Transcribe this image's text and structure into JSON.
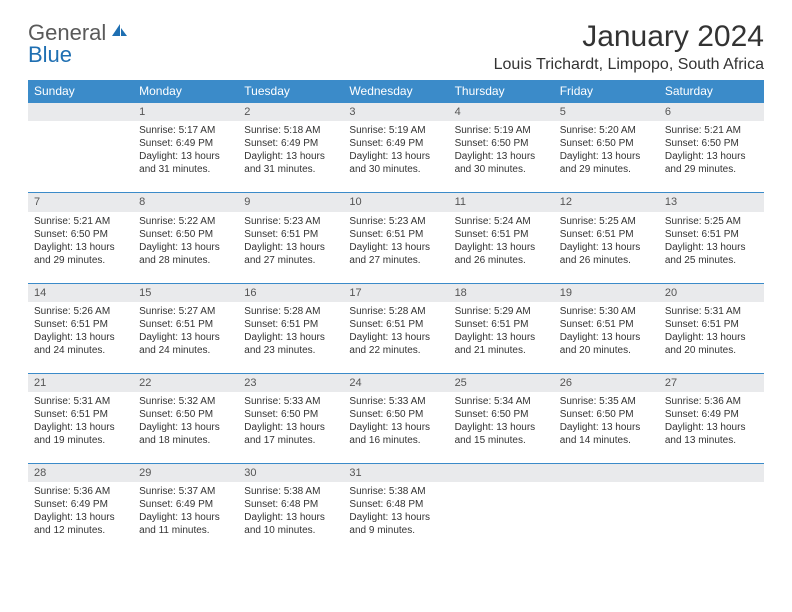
{
  "brand": {
    "part1": "General",
    "part2": "Blue"
  },
  "title": "January 2024",
  "location": "Louis Trichardt, Limpopo, South Africa",
  "colors": {
    "header_bg": "#3b8bc9",
    "daynum_bg": "#e9eaec",
    "border": "#3b8bc9"
  },
  "weekdays": [
    "Sunday",
    "Monday",
    "Tuesday",
    "Wednesday",
    "Thursday",
    "Friday",
    "Saturday"
  ],
  "weeks": [
    {
      "nums": [
        "",
        "1",
        "2",
        "3",
        "4",
        "5",
        "6"
      ],
      "cells": [
        null,
        {
          "sunrise": "Sunrise: 5:17 AM",
          "sunset": "Sunset: 6:49 PM",
          "day1": "Daylight: 13 hours",
          "day2": "and 31 minutes."
        },
        {
          "sunrise": "Sunrise: 5:18 AM",
          "sunset": "Sunset: 6:49 PM",
          "day1": "Daylight: 13 hours",
          "day2": "and 31 minutes."
        },
        {
          "sunrise": "Sunrise: 5:19 AM",
          "sunset": "Sunset: 6:49 PM",
          "day1": "Daylight: 13 hours",
          "day2": "and 30 minutes."
        },
        {
          "sunrise": "Sunrise: 5:19 AM",
          "sunset": "Sunset: 6:50 PM",
          "day1": "Daylight: 13 hours",
          "day2": "and 30 minutes."
        },
        {
          "sunrise": "Sunrise: 5:20 AM",
          "sunset": "Sunset: 6:50 PM",
          "day1": "Daylight: 13 hours",
          "day2": "and 29 minutes."
        },
        {
          "sunrise": "Sunrise: 5:21 AM",
          "sunset": "Sunset: 6:50 PM",
          "day1": "Daylight: 13 hours",
          "day2": "and 29 minutes."
        }
      ]
    },
    {
      "nums": [
        "7",
        "8",
        "9",
        "10",
        "11",
        "12",
        "13"
      ],
      "cells": [
        {
          "sunrise": "Sunrise: 5:21 AM",
          "sunset": "Sunset: 6:50 PM",
          "day1": "Daylight: 13 hours",
          "day2": "and 29 minutes."
        },
        {
          "sunrise": "Sunrise: 5:22 AM",
          "sunset": "Sunset: 6:50 PM",
          "day1": "Daylight: 13 hours",
          "day2": "and 28 minutes."
        },
        {
          "sunrise": "Sunrise: 5:23 AM",
          "sunset": "Sunset: 6:51 PM",
          "day1": "Daylight: 13 hours",
          "day2": "and 27 minutes."
        },
        {
          "sunrise": "Sunrise: 5:23 AM",
          "sunset": "Sunset: 6:51 PM",
          "day1": "Daylight: 13 hours",
          "day2": "and 27 minutes."
        },
        {
          "sunrise": "Sunrise: 5:24 AM",
          "sunset": "Sunset: 6:51 PM",
          "day1": "Daylight: 13 hours",
          "day2": "and 26 minutes."
        },
        {
          "sunrise": "Sunrise: 5:25 AM",
          "sunset": "Sunset: 6:51 PM",
          "day1": "Daylight: 13 hours",
          "day2": "and 26 minutes."
        },
        {
          "sunrise": "Sunrise: 5:25 AM",
          "sunset": "Sunset: 6:51 PM",
          "day1": "Daylight: 13 hours",
          "day2": "and 25 minutes."
        }
      ]
    },
    {
      "nums": [
        "14",
        "15",
        "16",
        "17",
        "18",
        "19",
        "20"
      ],
      "cells": [
        {
          "sunrise": "Sunrise: 5:26 AM",
          "sunset": "Sunset: 6:51 PM",
          "day1": "Daylight: 13 hours",
          "day2": "and 24 minutes."
        },
        {
          "sunrise": "Sunrise: 5:27 AM",
          "sunset": "Sunset: 6:51 PM",
          "day1": "Daylight: 13 hours",
          "day2": "and 24 minutes."
        },
        {
          "sunrise": "Sunrise: 5:28 AM",
          "sunset": "Sunset: 6:51 PM",
          "day1": "Daylight: 13 hours",
          "day2": "and 23 minutes."
        },
        {
          "sunrise": "Sunrise: 5:28 AM",
          "sunset": "Sunset: 6:51 PM",
          "day1": "Daylight: 13 hours",
          "day2": "and 22 minutes."
        },
        {
          "sunrise": "Sunrise: 5:29 AM",
          "sunset": "Sunset: 6:51 PM",
          "day1": "Daylight: 13 hours",
          "day2": "and 21 minutes."
        },
        {
          "sunrise": "Sunrise: 5:30 AM",
          "sunset": "Sunset: 6:51 PM",
          "day1": "Daylight: 13 hours",
          "day2": "and 20 minutes."
        },
        {
          "sunrise": "Sunrise: 5:31 AM",
          "sunset": "Sunset: 6:51 PM",
          "day1": "Daylight: 13 hours",
          "day2": "and 20 minutes."
        }
      ]
    },
    {
      "nums": [
        "21",
        "22",
        "23",
        "24",
        "25",
        "26",
        "27"
      ],
      "cells": [
        {
          "sunrise": "Sunrise: 5:31 AM",
          "sunset": "Sunset: 6:51 PM",
          "day1": "Daylight: 13 hours",
          "day2": "and 19 minutes."
        },
        {
          "sunrise": "Sunrise: 5:32 AM",
          "sunset": "Sunset: 6:50 PM",
          "day1": "Daylight: 13 hours",
          "day2": "and 18 minutes."
        },
        {
          "sunrise": "Sunrise: 5:33 AM",
          "sunset": "Sunset: 6:50 PM",
          "day1": "Daylight: 13 hours",
          "day2": "and 17 minutes."
        },
        {
          "sunrise": "Sunrise: 5:33 AM",
          "sunset": "Sunset: 6:50 PM",
          "day1": "Daylight: 13 hours",
          "day2": "and 16 minutes."
        },
        {
          "sunrise": "Sunrise: 5:34 AM",
          "sunset": "Sunset: 6:50 PM",
          "day1": "Daylight: 13 hours",
          "day2": "and 15 minutes."
        },
        {
          "sunrise": "Sunrise: 5:35 AM",
          "sunset": "Sunset: 6:50 PM",
          "day1": "Daylight: 13 hours",
          "day2": "and 14 minutes."
        },
        {
          "sunrise": "Sunrise: 5:36 AM",
          "sunset": "Sunset: 6:49 PM",
          "day1": "Daylight: 13 hours",
          "day2": "and 13 minutes."
        }
      ]
    },
    {
      "nums": [
        "28",
        "29",
        "30",
        "31",
        "",
        "",
        ""
      ],
      "cells": [
        {
          "sunrise": "Sunrise: 5:36 AM",
          "sunset": "Sunset: 6:49 PM",
          "day1": "Daylight: 13 hours",
          "day2": "and 12 minutes."
        },
        {
          "sunrise": "Sunrise: 5:37 AM",
          "sunset": "Sunset: 6:49 PM",
          "day1": "Daylight: 13 hours",
          "day2": "and 11 minutes."
        },
        {
          "sunrise": "Sunrise: 5:38 AM",
          "sunset": "Sunset: 6:48 PM",
          "day1": "Daylight: 13 hours",
          "day2": "and 10 minutes."
        },
        {
          "sunrise": "Sunrise: 5:38 AM",
          "sunset": "Sunset: 6:48 PM",
          "day1": "Daylight: 13 hours",
          "day2": "and 9 minutes."
        },
        null,
        null,
        null
      ]
    }
  ]
}
